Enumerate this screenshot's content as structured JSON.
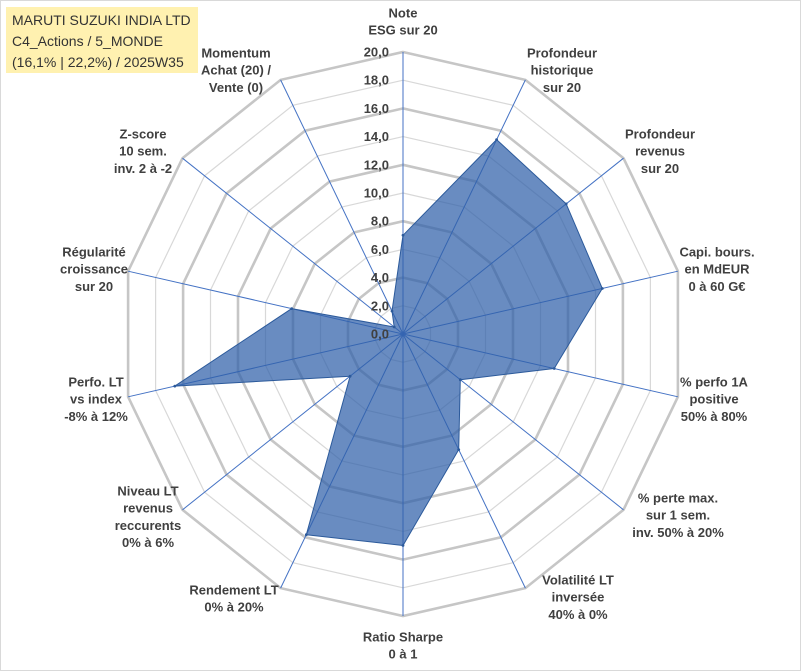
{
  "chart_data": {
    "type": "radar",
    "title_lines": [
      "MARUTI SUZUKI INDIA LTD",
      "C4_Actions / 5_MONDE",
      "(16,1% | 22,2%) / 2025W35"
    ],
    "categories": [
      [
        "Note",
        "ESG sur 20"
      ],
      [
        "Profondeur",
        "historique",
        "sur 20"
      ],
      [
        "Profondeur",
        "revenus",
        "sur 20"
      ],
      [
        "Capi. bours.",
        "en MdEUR",
        "0 à 60 G€"
      ],
      [
        "% perfo 1A",
        "positive",
        "50% à 80%"
      ],
      [
        "% perte max.",
        "sur 1 sem.",
        "inv. 50% à 20%"
      ],
      [
        "Volatilité LT",
        "inversée",
        "40% à 0%"
      ],
      [
        "Ratio Sharpe",
        "0 à 1"
      ],
      [
        "Rendement LT",
        "0% à 20%"
      ],
      [
        "Niveau LT",
        "revenus",
        "reccurents",
        "0% à 6%"
      ],
      [
        "Perfo. LT",
        "vs index",
        "-8% à 12%"
      ],
      [
        "Régularité",
        "croissance",
        "sur 20"
      ],
      [
        "Z-score",
        "10 sem.",
        "inv. 2 à -2"
      ],
      [
        "Momentum",
        "Achat (20) /",
        "Vente (0)"
      ]
    ],
    "values": [
      7.0,
      15.3,
      14.8,
      14.5,
      11.0,
      5.2,
      9.1,
      15.0,
      15.8,
      4.8,
      16.6,
      8.1,
      0.8,
      1.8
    ],
    "rlim": [
      0,
      20
    ],
    "tick_labels": [
      "0,0",
      "2,0",
      "4,0",
      "6,0",
      "8,0",
      "10,0",
      "12,0",
      "14,0",
      "16,0",
      "18,0",
      "20,0"
    ],
    "grid": true,
    "legend": "none",
    "colors": {
      "series_fill": "#2F60A9",
      "series_stroke": "#2C5A9B",
      "spokes": "#4472C4",
      "grid_major": "#C6C6C6",
      "grid_minor": "#D8D8D8",
      "title_box_background": "#FFF1B0"
    }
  }
}
